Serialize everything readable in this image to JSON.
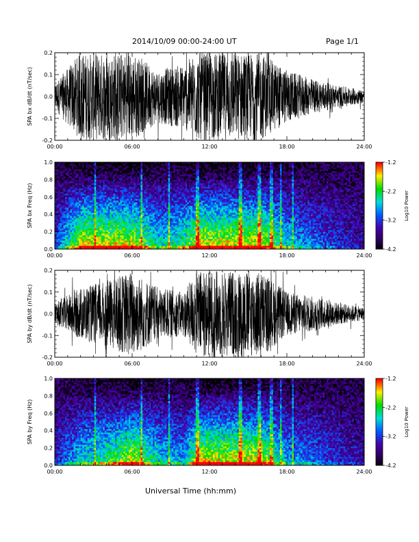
{
  "header": {
    "title": "2014/10/09  00:00-24:00 UT",
    "page": "Page 1/1"
  },
  "xaxis": {
    "label": "Universal Time (hh:mm)",
    "ticks": [
      "00:00",
      "06:00",
      "12:00",
      "18:00",
      "24:00"
    ],
    "range_hours": [
      0,
      24
    ]
  },
  "colorbar": {
    "label": "Log10 Power",
    "ticks": [
      "-1.2",
      "-2.2",
      "-3.2",
      "-4.2"
    ],
    "range": [
      -4.2,
      -1.2
    ]
  },
  "chart_data": [
    {
      "type": "line",
      "ylabel": "SPA bx dB/dt (nT/sec)",
      "ylim": [
        -0.2,
        0.2
      ],
      "yticks": [
        "-0.2",
        "-0.1",
        "0.0",
        "0.1",
        "0.2"
      ],
      "activity_hours": [
        0,
        2,
        4,
        6,
        8,
        10,
        11,
        12,
        13,
        14,
        16,
        18,
        20,
        22,
        24
      ],
      "activity_amplitude": [
        0.06,
        0.2,
        0.2,
        0.2,
        0.12,
        0.15,
        0.2,
        0.2,
        0.2,
        0.2,
        0.2,
        0.12,
        0.08,
        0.05,
        0.03
      ]
    },
    {
      "type": "heatmap",
      "ylabel": "SPA bx Freq (Hz)",
      "ylim": [
        0.0,
        1.0
      ],
      "yticks": [
        "0.0",
        "0.2",
        "0.4",
        "0.6",
        "0.8",
        "1.0"
      ],
      "zrange": [
        -4.2,
        -1.2
      ]
    },
    {
      "type": "line",
      "ylabel": "SPA by dB/dt (nT/sec)",
      "ylim": [
        -0.2,
        0.2
      ],
      "yticks": [
        "-0.2",
        "-0.1",
        "0.0",
        "0.1",
        "0.2"
      ],
      "activity_hours": [
        0,
        2,
        4,
        6,
        8,
        10,
        11,
        12,
        13,
        14,
        16,
        18,
        20,
        22,
        24
      ],
      "activity_amplitude": [
        0.05,
        0.12,
        0.15,
        0.2,
        0.12,
        0.1,
        0.2,
        0.2,
        0.2,
        0.2,
        0.2,
        0.1,
        0.08,
        0.05,
        0.03
      ]
    },
    {
      "type": "heatmap",
      "ylabel": "SPA by Freq (Hz)",
      "ylim": [
        0.0,
        1.0
      ],
      "yticks": [
        "0.0",
        "0.2",
        "0.4",
        "0.6",
        "0.8",
        "1.0"
      ],
      "zrange": [
        -4.2,
        -1.2
      ]
    }
  ]
}
